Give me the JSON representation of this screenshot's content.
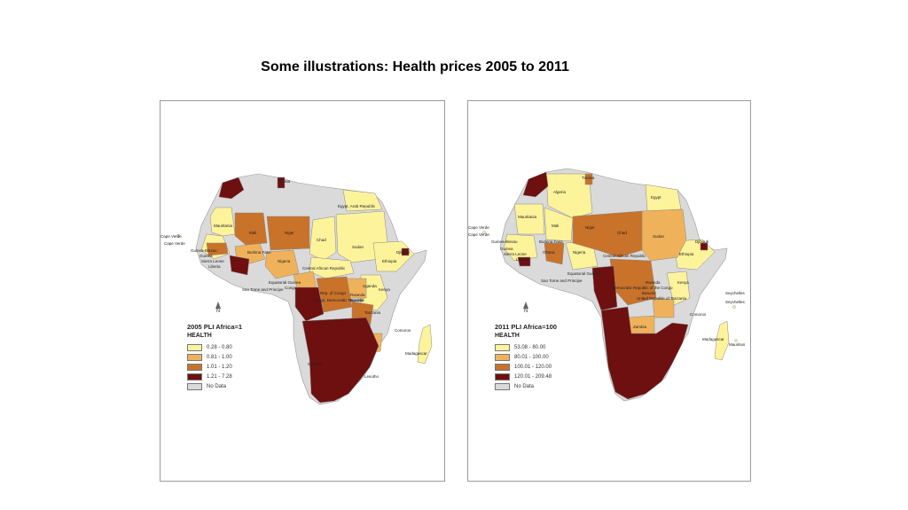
{
  "slide": {
    "title": "Some illustrations: Health prices 2005 to 2011"
  },
  "maps": [
    {
      "legend_title": "2005 PLI Africa=1",
      "legend_subtitle": "HEALTH",
      "legend": [
        {
          "label": "0.28 - 0.80",
          "color": "#fdf39b"
        },
        {
          "label": "0.81 - 1.00",
          "color": "#efb25a"
        },
        {
          "label": "1.01 - 1.20",
          "color": "#c9722a"
        },
        {
          "label": "1.21 - 7.28",
          "color": "#6e1010"
        },
        {
          "label": "No Data",
          "color": "#dadada"
        }
      ],
      "north": "N",
      "labels": {
        "tunisia": "Tunisia",
        "egypt": "Egypt, Arab Republic",
        "mauritania": "Mauritania",
        "mali": "Mali",
        "niger": "Niger",
        "chad": "Chad",
        "sudan": "Sudan",
        "cape_verde_1": "Cape Verde",
        "cape_verde_2": "Cape Verde",
        "guinea_bissau": "Guinea-Bissau",
        "guinea": "Guinea",
        "sierra_leone": "Sierra Leone",
        "liberia": "Liberia",
        "burkina": "Burkina Faso",
        "nigeria": "Nigeria",
        "car": "Central African Republic",
        "ethiopia": "Ethiopia",
        "djibouti": "Djibouti",
        "eq_guinea": "Equatorial Guinea",
        "sao_tome": "Sao Tome and Principe",
        "congo": "Congo",
        "rep_congo": "Rep. of Congo",
        "drc": "Congo, Democratic Republic",
        "rwanda": "Rwanda",
        "burundi": "Burundi",
        "uganda": "Uganda",
        "kenya": "Kenya",
        "tanzania": "Tanzania",
        "comoros": "Comoros",
        "madagascar": "Madagascar",
        "namibia": "Namibia",
        "lesotho": "Lesotho"
      }
    },
    {
      "legend_title": "2011 PLI Africa=100",
      "legend_subtitle": "HEALTH",
      "legend": [
        {
          "label": "53.08 - 80.00",
          "color": "#fdf39b"
        },
        {
          "label": "80.01 - 100.00",
          "color": "#efb25a"
        },
        {
          "label": "100.01 - 120.00",
          "color": "#c9722a"
        },
        {
          "label": "120.01 - 209.48",
          "color": "#6e1010"
        },
        {
          "label": "No Data",
          "color": "#dadada"
        }
      ],
      "north": "N",
      "labels": {
        "tunisia": "Tunisia",
        "algeria": "Algeria",
        "egypt": "Egypt",
        "mauritania": "Mauritania",
        "mali": "Mali",
        "niger": "Niger",
        "chad": "Chad",
        "sudan": "Sudan",
        "cape_verde_1": "Cape Verde",
        "cape_verde_2": "Cape Verde",
        "guinea_bissau": "Guinea-Bissau",
        "guinea": "Guinea",
        "sierra_leone": "Sierra Leone",
        "liberia": "Liberia",
        "burkina": "Burkina Faso",
        "ghana": "Ghana",
        "nigeria": "Nigeria",
        "car": "Central African Republic",
        "ethiopia": "Ethiopia",
        "djibouti": "Djibouti",
        "eq_guinea": "Equatorial Guinea",
        "sao_tome": "Sao Tome and Principe",
        "drc": "Democratic Republic of the Congo",
        "burundi": "Burundi",
        "rwanda": "Rwanda",
        "tanzania": "United Republic of Tanzania",
        "kenya": "Kenya",
        "seychelles_1": "Seychelles",
        "seychelles_2": "Seychelles",
        "comoros": "Comoros",
        "zambia": "Zambia",
        "madagascar": "Madagascar",
        "mauritius": "Mauritius"
      }
    }
  ]
}
